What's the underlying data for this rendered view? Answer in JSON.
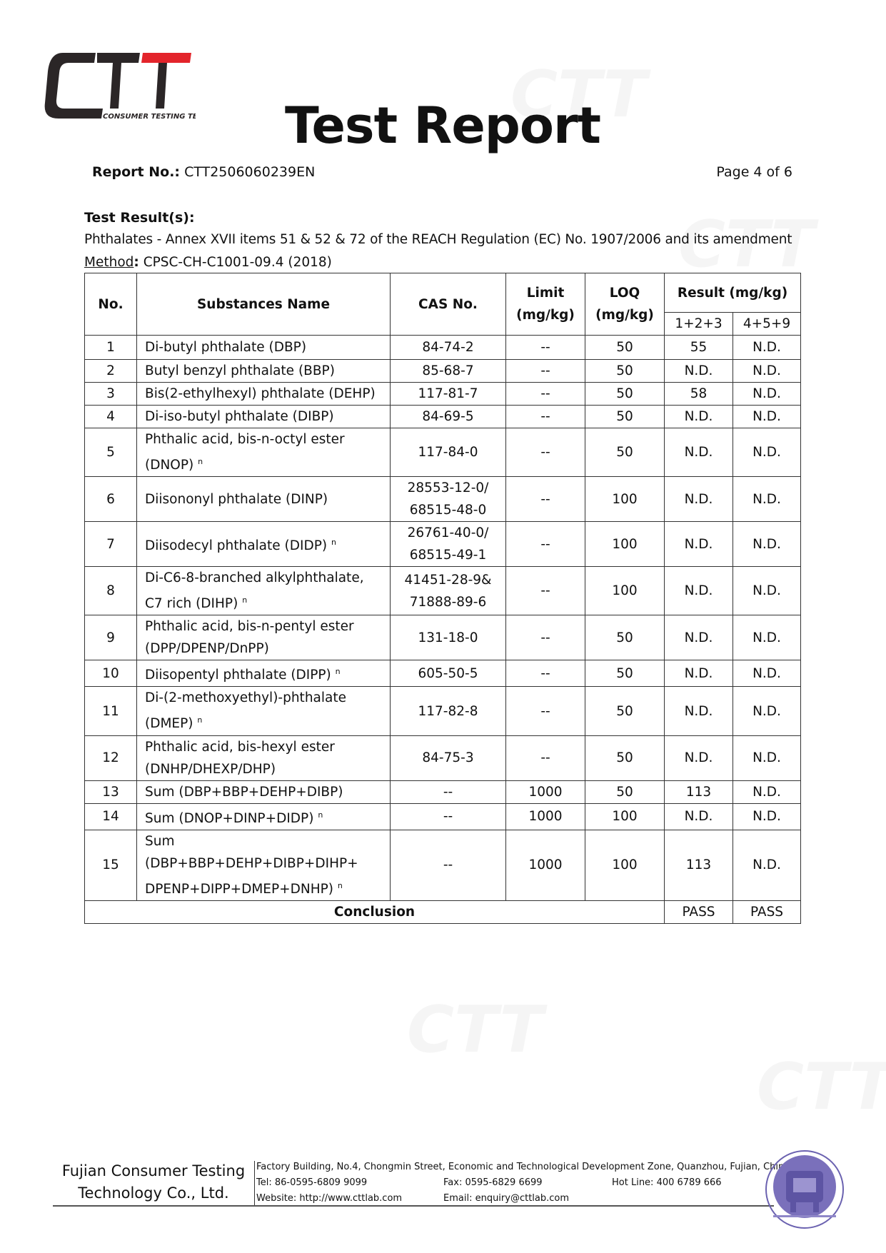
{
  "header": {
    "logo_text": "CTT",
    "logo_subtext": "CONSUMER TESTING TECH",
    "title": "Test Report",
    "report_no_label": "Report No.:",
    "report_no": "CTT2506060239EN",
    "page": "Page 4 of 6"
  },
  "section": {
    "heading": "Test Result(s):",
    "scope": "Phthalates - Annex XVII items 51 & 52 & 72 of the REACH Regulation (EC) No. 1907/2006 and its amendment",
    "method_label": "Method",
    "method": "CPSC-CH-C1001-09.4 (2018)"
  },
  "table": {
    "headers": {
      "no": "No.",
      "name": "Substances Name",
      "cas": "CAS No.",
      "limit": "Limit (mg/kg)",
      "loq": "LOQ (mg/kg)",
      "result": "Result (mg/kg)",
      "r1": "1+2+3",
      "r2": "4+5+9"
    },
    "rows": [
      {
        "no": "1",
        "name": "Di-butyl phthalate (DBP)",
        "note": "",
        "cas": "84-74-2",
        "limit": "--",
        "loq": "50",
        "r1": "55",
        "r2": "N.D."
      },
      {
        "no": "2",
        "name": "Butyl benzyl phthalate (BBP)",
        "note": "",
        "cas": "85-68-7",
        "limit": "--",
        "loq": "50",
        "r1": "N.D.",
        "r2": "N.D."
      },
      {
        "no": "3",
        "name": "Bis(2-ethylhexyl) phthalate (DEHP)",
        "note": "",
        "cas": "117-81-7",
        "limit": "--",
        "loq": "50",
        "r1": "58",
        "r2": "N.D."
      },
      {
        "no": "4",
        "name": "Di-iso-butyl phthalate (DIBP)",
        "note": "",
        "cas": "84-69-5",
        "limit": "--",
        "loq": "50",
        "r1": "N.D.",
        "r2": "N.D."
      },
      {
        "no": "5",
        "name": "Phthalic acid, bis-n-octyl ester (DNOP)",
        "note": "n",
        "cas": "117-84-0",
        "limit": "--",
        "loq": "50",
        "r1": "N.D.",
        "r2": "N.D."
      },
      {
        "no": "6",
        "name": "Diisononyl phthalate (DINP)",
        "note": "",
        "cas": "28553-12-0/ 68515-48-0",
        "limit": "--",
        "loq": "100",
        "r1": "N.D.",
        "r2": "N.D."
      },
      {
        "no": "7",
        "name": "Diisodecyl phthalate (DIDP)",
        "note": "n",
        "cas": "26761-40-0/ 68515-49-1",
        "limit": "--",
        "loq": "100",
        "r1": "N.D.",
        "r2": "N.D."
      },
      {
        "no": "8",
        "name": "Di-C6-8-branched alkylphthalate, C7 rich (DIHP)",
        "note": "n",
        "cas": "41451-28-9& 71888-89-6",
        "limit": "--",
        "loq": "100",
        "r1": "N.D.",
        "r2": "N.D."
      },
      {
        "no": "9",
        "name": "Phthalic acid, bis-n-pentyl ester (DPP/DPENP/DnPP)",
        "note": "",
        "cas": "131-18-0",
        "limit": "--",
        "loq": "50",
        "r1": "N.D.",
        "r2": "N.D."
      },
      {
        "no": "10",
        "name": "Diisopentyl phthalate (DIPP)",
        "note": "n",
        "cas": "605-50-5",
        "limit": "--",
        "loq": "50",
        "r1": "N.D.",
        "r2": "N.D."
      },
      {
        "no": "11",
        "name": "Di-(2-methoxyethyl)-phthalate (DMEP)",
        "note": "n",
        "cas": "117-82-8",
        "limit": "--",
        "loq": "50",
        "r1": "N.D.",
        "r2": "N.D."
      },
      {
        "no": "12",
        "name": "Phthalic acid, bis-hexyl ester (DNHP/DHEXP/DHP)",
        "note": "",
        "cas": "84-75-3",
        "limit": "--",
        "loq": "50",
        "r1": "N.D.",
        "r2": "N.D."
      },
      {
        "no": "13",
        "name": "Sum (DBP+BBP+DEHP+DIBP)",
        "note": "",
        "cas": "--",
        "limit": "1000",
        "loq": "50",
        "r1": "113",
        "r2": "N.D."
      },
      {
        "no": "14",
        "name": "Sum (DNOP+DINP+DIDP)",
        "note": "n",
        "cas": "--",
        "limit": "1000",
        "loq": "100",
        "r1": "N.D.",
        "r2": "N.D."
      },
      {
        "no": "15",
        "name": "Sum (DBP+BBP+DEHP+DIBP+DIHP+ DPENP+DIPP+DMEP+DNHP)",
        "note": "n",
        "cas": "--",
        "limit": "1000",
        "loq": "100",
        "r1": "113",
        "r2": "N.D."
      }
    ],
    "conclusion": {
      "label": "Conclusion",
      "r1": "PASS",
      "r2": "PASS"
    }
  },
  "footer": {
    "company": "Fujian Consumer Testing Technology Co., Ltd.",
    "address": "Factory Building, No.4, Chongmin Street, Economic and Technological Development Zone, Quanzhou, Fujian, China",
    "tel": "Tel: 86-0595-6809 9099",
    "fax": "Fax: 0595-6829 6699",
    "hotline": "Hot Line: 400 6789 666",
    "website": "Website: http://www.cttlab.com",
    "email": "Email: enquiry@cttlab.com"
  },
  "colors": {
    "logo_dark": "#2b2627",
    "logo_red": "#e3242b",
    "seal": "#6b62b0"
  }
}
